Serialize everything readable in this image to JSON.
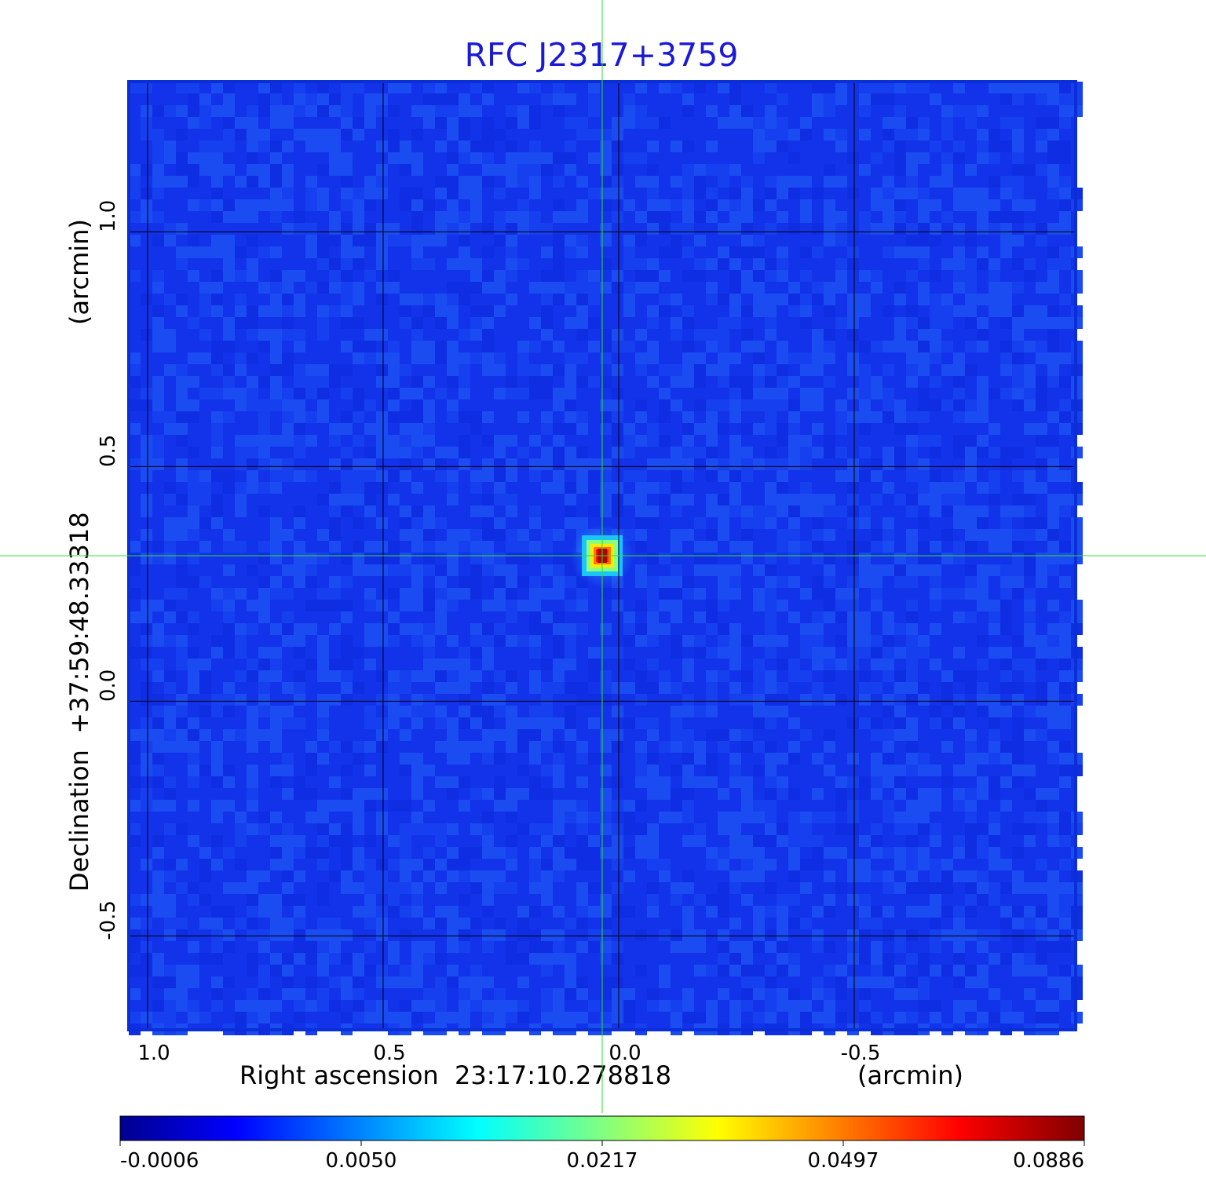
{
  "chart_data": {
    "type": "heatmap",
    "title": "RFC J2317+3759",
    "xlabel": "Right ascension  23:17:10.278818",
    "xunit": "(arcmin)",
    "ylabel": "Declination  +37:59:48.33318",
    "yunit": "(arcmin)",
    "xlim": [
      1.04,
      -0.97
    ],
    "ylim": [
      -0.7,
      1.32
    ],
    "x_ticks": [
      1.0,
      0.5,
      0.0,
      -0.5
    ],
    "x_tick_labels": [
      "1.0",
      "0.5",
      "0.0",
      "-0.5"
    ],
    "y_ticks": [
      1.0,
      0.5,
      0.0,
      -0.5
    ],
    "y_tick_labels": [
      "1.0",
      "0.5",
      "0.0",
      "-0.5"
    ],
    "grid": true,
    "crosshair": {
      "x": 0.035,
      "y": 0.31
    },
    "source_peak": {
      "x": 0.035,
      "y": 0.31,
      "value": 0.0886
    },
    "background_level": -0.0006,
    "colorbar": {
      "colormap": "jet",
      "ticks": [
        "-0.0006",
        "0.0050",
        "0.0217",
        "0.0497",
        "0.0886"
      ],
      "min": -0.0006,
      "max": 0.0886
    }
  },
  "colors": {
    "title": "#1a1ad6",
    "crosshair": "#33dd33",
    "frame": "#0a2fd6",
    "background": "#1233ea"
  }
}
